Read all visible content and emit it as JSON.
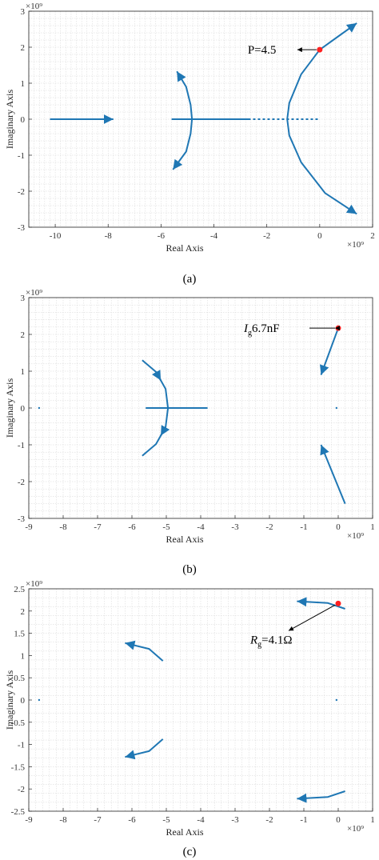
{
  "colors": {
    "locus": "#1f77b4",
    "marker": "#ff2020",
    "grid": "#d4d4d4",
    "frame": "#222222"
  },
  "chart_data": [
    {
      "type": "scatter",
      "caption": "(a)",
      "xlabel": "Real Axis",
      "ylabel": "Imaginary Axis",
      "xscale": "×10⁹",
      "yscale": "×10⁹",
      "xlim": [
        -11,
        2
      ],
      "ylim": [
        -3,
        3
      ],
      "xticks": [
        -10,
        -8,
        -6,
        -4,
        -2,
        0,
        2
      ],
      "yticks": [
        -3,
        -2,
        -1,
        0,
        1,
        2,
        3
      ],
      "grid": true,
      "annotation": {
        "text": "P=4.5",
        "point": [
          0.0,
          1.93
        ]
      },
      "series": [
        {
          "points": [
            [
              -10.2,
              0
            ],
            [
              -7.8,
              0
            ]
          ],
          "arrow": "end"
        },
        {
          "points": [
            [
              -5.6,
              0
            ],
            [
              -2.7,
              0
            ]
          ]
        },
        {
          "points": [
            [
              -2.7,
              0
            ],
            [
              -0.05,
              0
            ]
          ],
          "dashed": true
        },
        {
          "points": [
            [
              -5.4,
              1.33
            ],
            [
              -5.05,
              0.9
            ],
            [
              -4.88,
              0.4
            ],
            [
              -4.83,
              0
            ],
            [
              -4.88,
              -0.4
            ],
            [
              -5.05,
              -0.9
            ],
            [
              -5.55,
              -1.4
            ]
          ],
          "arrow": "both"
        },
        {
          "points": [
            [
              1.4,
              2.67
            ],
            [
              0.7,
              2.3
            ],
            [
              0.0,
              1.93
            ],
            [
              -0.7,
              1.25
            ],
            [
              -1.15,
              0.45
            ],
            [
              -1.23,
              0
            ],
            [
              -1.15,
              -0.45
            ],
            [
              -0.7,
              -1.2
            ],
            [
              0.2,
              -2.05
            ],
            [
              1.4,
              -2.63
            ]
          ],
          "arrow": "both"
        }
      ]
    },
    {
      "type": "scatter",
      "caption": "(b)",
      "xlabel": "Real Axis",
      "ylabel": "Imaginary Axis",
      "xscale": "×10⁹",
      "yscale": "×10⁹",
      "xlim": [
        -9,
        1
      ],
      "ylim": [
        -3,
        3
      ],
      "xticks": [
        -9,
        -8,
        -7,
        -6,
        -5,
        -4,
        -3,
        -2,
        -1,
        0,
        1
      ],
      "yticks": [
        -3,
        -2,
        -1,
        0,
        1,
        2,
        3
      ],
      "grid": true,
      "annotation": {
        "text": "6.7nF",
        "subscript_label": "I",
        "subscript": "g",
        "point": [
          0.0,
          2.17
        ]
      },
      "series": [
        {
          "points": [
            [
              -8.7,
              0
            ]
          ],
          "marker": "dot"
        },
        {
          "points": [
            [
              -0.05,
              0
            ]
          ],
          "marker": "dot"
        },
        {
          "points": [
            [
              -5.6,
              0
            ],
            [
              -3.8,
              0
            ]
          ]
        },
        {
          "points": [
            [
              -5.7,
              1.3
            ],
            [
              -5.3,
              0.98
            ],
            [
              -5.02,
              0.52
            ],
            [
              -4.95,
              0
            ]
          ],
          "arrow": "mid"
        },
        {
          "points": [
            [
              -4.95,
              0
            ],
            [
              -5.02,
              -0.52
            ],
            [
              -5.3,
              -0.98
            ],
            [
              -5.7,
              -1.3
            ]
          ],
          "arrow": "mid"
        },
        {
          "points": [
            [
              0.0,
              2.17
            ],
            [
              -0.5,
              0.9
            ]
          ],
          "arrow": "end"
        },
        {
          "points": [
            [
              0.2,
              -2.6
            ],
            [
              -0.5,
              -1.0
            ]
          ],
          "arrow": "end"
        }
      ]
    },
    {
      "type": "scatter",
      "caption": "(c)",
      "xlabel": "Real Axis",
      "ylabel": "Imaginary Axis",
      "xscale": "×10⁹",
      "yscale": "×10⁹",
      "xlim": [
        -9,
        1
      ],
      "ylim": [
        -2.5,
        2.5
      ],
      "xticks": [
        -9,
        -8,
        -7,
        -6,
        -5,
        -4,
        -3,
        -2,
        -1,
        0,
        1
      ],
      "yticks": [
        -2.5,
        -2,
        -1.5,
        -1,
        -0.5,
        0,
        0.5,
        1,
        1.5,
        2,
        2.5
      ],
      "grid": true,
      "annotation": {
        "text": "=4.1Ω",
        "subscript_label": "R",
        "subscript": "g",
        "point": [
          0.0,
          2.17
        ]
      },
      "series": [
        {
          "points": [
            [
              -8.7,
              0
            ]
          ],
          "marker": "dot"
        },
        {
          "points": [
            [
              -0.05,
              0
            ]
          ],
          "marker": "dot"
        },
        {
          "points": [
            [
              -5.1,
              0.88
            ],
            [
              -5.5,
              1.15
            ],
            [
              -6.2,
              1.28
            ]
          ],
          "arrow": "end"
        },
        {
          "points": [
            [
              -5.1,
              -0.88
            ],
            [
              -5.5,
              -1.15
            ],
            [
              -6.2,
              -1.28
            ]
          ],
          "arrow": "end"
        },
        {
          "points": [
            [
              0.2,
              2.05
            ],
            [
              -0.3,
              2.18
            ],
            [
              -1.2,
              2.22
            ]
          ],
          "arrow": "end"
        },
        {
          "points": [
            [
              0.2,
              -2.05
            ],
            [
              -0.3,
              -2.18
            ],
            [
              -1.2,
              -2.22
            ]
          ],
          "arrow": "end"
        }
      ]
    }
  ]
}
